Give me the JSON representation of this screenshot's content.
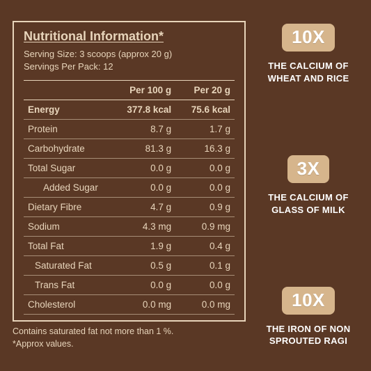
{
  "colors": {
    "background": "#5a3825",
    "line": "#e8d5bb",
    "text_light": "#e8d5bb",
    "badge_bg": "#d6b58c",
    "badge_text": "#ffffff",
    "callout_text": "#ffffff"
  },
  "panel": {
    "title": "Nutritional Information*",
    "serving_size": "Serving Size: 3 scoops (approx 20 g)",
    "servings_per_pack": "Servings Per Pack: 12",
    "columns": [
      "",
      "Per 100 g",
      "Per 20 g"
    ],
    "rows": [
      {
        "label": "Energy",
        "per100": "377.8 kcal",
        "per20": "75.6 kcal",
        "indent": 0,
        "bold": true
      },
      {
        "label": "Protein",
        "per100": "8.7 g",
        "per20": "1.7 g",
        "indent": 0
      },
      {
        "label": "Carbohydrate",
        "per100": "81.3 g",
        "per20": "16.3 g",
        "indent": 0
      },
      {
        "label": "Total Sugar",
        "per100": "0.0 g",
        "per20": "0.0 g",
        "indent": 0
      },
      {
        "label": "Added Sugar",
        "per100": "0.0 g",
        "per20": "0.0 g",
        "indent": 2
      },
      {
        "label": "Dietary Fibre",
        "per100": "4.7 g",
        "per20": "0.9 g",
        "indent": 0
      },
      {
        "label": "Sodium",
        "per100": "4.3 mg",
        "per20": "0.9 mg",
        "indent": 0
      },
      {
        "label": "Total Fat",
        "per100": "1.9 g",
        "per20": "0.4 g",
        "indent": 0
      },
      {
        "label": "Saturated Fat",
        "per100": "0.5 g",
        "per20": "0.1 g",
        "indent": 1
      },
      {
        "label": "Trans Fat",
        "per100": "0.0 g",
        "per20": "0.0 g",
        "indent": 1
      },
      {
        "label": "Cholesterol",
        "per100": "0.0 mg",
        "per20": "0.0 mg",
        "indent": 0
      }
    ],
    "footnote_line1": "Contains saturated fat not more than 1 %.",
    "footnote_line2": "*Approx values."
  },
  "callouts": [
    {
      "badge": "10X",
      "text_l1": "THE CALCIUM OF",
      "text_l2": "WHEAT AND RICE"
    },
    {
      "badge": "3X",
      "text_l1": "THE CALCIUM OF",
      "text_l2": "GLASS OF MILK"
    },
    {
      "badge": "10X",
      "text_l1": "THE IRON OF NON",
      "text_l2": "SPROUTED RAGI"
    }
  ]
}
